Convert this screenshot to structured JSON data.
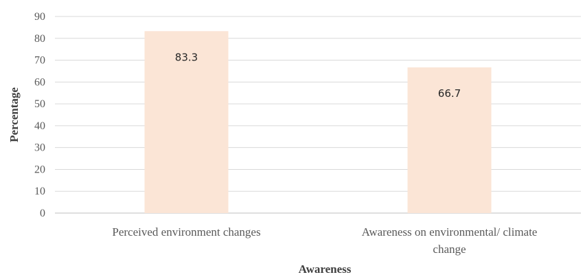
{
  "chart_data": {
    "type": "bar",
    "categories": [
      [
        "Perceived environment changes"
      ],
      [
        "Awareness on environmental/ climate",
        "change"
      ]
    ],
    "values": [
      83.3,
      66.7
    ],
    "data_labels": [
      "83.3",
      "66.7"
    ],
    "title": "",
    "xlabel": "Awareness",
    "ylabel": "Percentage",
    "ylim": [
      0,
      90
    ],
    "yticks": [
      0,
      10,
      20,
      30,
      40,
      50,
      60,
      70,
      80,
      90
    ],
    "grid": true,
    "legend": "none",
    "colors": {
      "bar": "#FBE5D6",
      "grid": "#D9D9D9",
      "text": "#595959"
    }
  }
}
